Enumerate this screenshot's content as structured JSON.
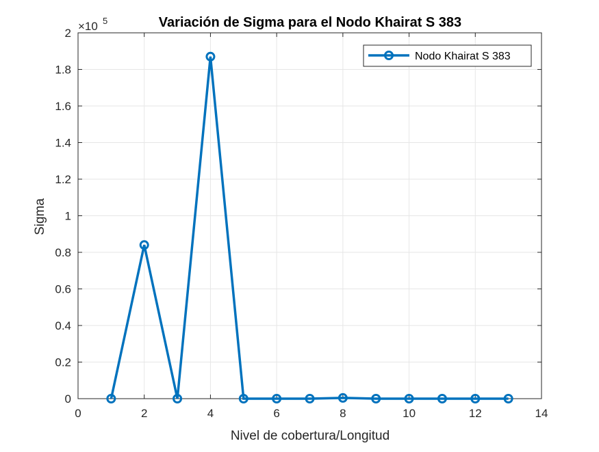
{
  "chart_data": {
    "type": "line",
    "title": "Variación de Sigma para el Nodo Khairat S 383",
    "xlabel": "Nivel de cobertura/Longitud",
    "ylabel": "Sigma",
    "xlim": [
      0,
      14
    ],
    "ylim": [
      0,
      200000
    ],
    "x_ticks": [
      0,
      2,
      4,
      6,
      8,
      10,
      12,
      14
    ],
    "x_tick_labels": [
      "0",
      "2",
      "4",
      "6",
      "8",
      "10",
      "12",
      "14"
    ],
    "y_ticks": [
      0,
      20000,
      40000,
      60000,
      80000,
      100000,
      120000,
      140000,
      160000,
      180000,
      200000
    ],
    "y_tick_labels": [
      "0",
      "0.2",
      "0.4",
      "0.6",
      "0.8",
      "1",
      "1.2",
      "1.4",
      "1.6",
      "1.8",
      "2"
    ],
    "y_exponent_base": "×10",
    "y_exponent_power": "5",
    "grid": true,
    "legend_position": "top-right",
    "series": [
      {
        "name": "Nodo Khairat S 383",
        "color": "#0072BD",
        "marker": "circle",
        "x": [
          1,
          2,
          3,
          4,
          5,
          6,
          7,
          8,
          9,
          10,
          11,
          12,
          13
        ],
        "y": [
          0,
          84000,
          0,
          187000,
          0,
          0,
          0,
          400,
          0,
          0,
          0,
          0,
          0
        ]
      }
    ]
  }
}
